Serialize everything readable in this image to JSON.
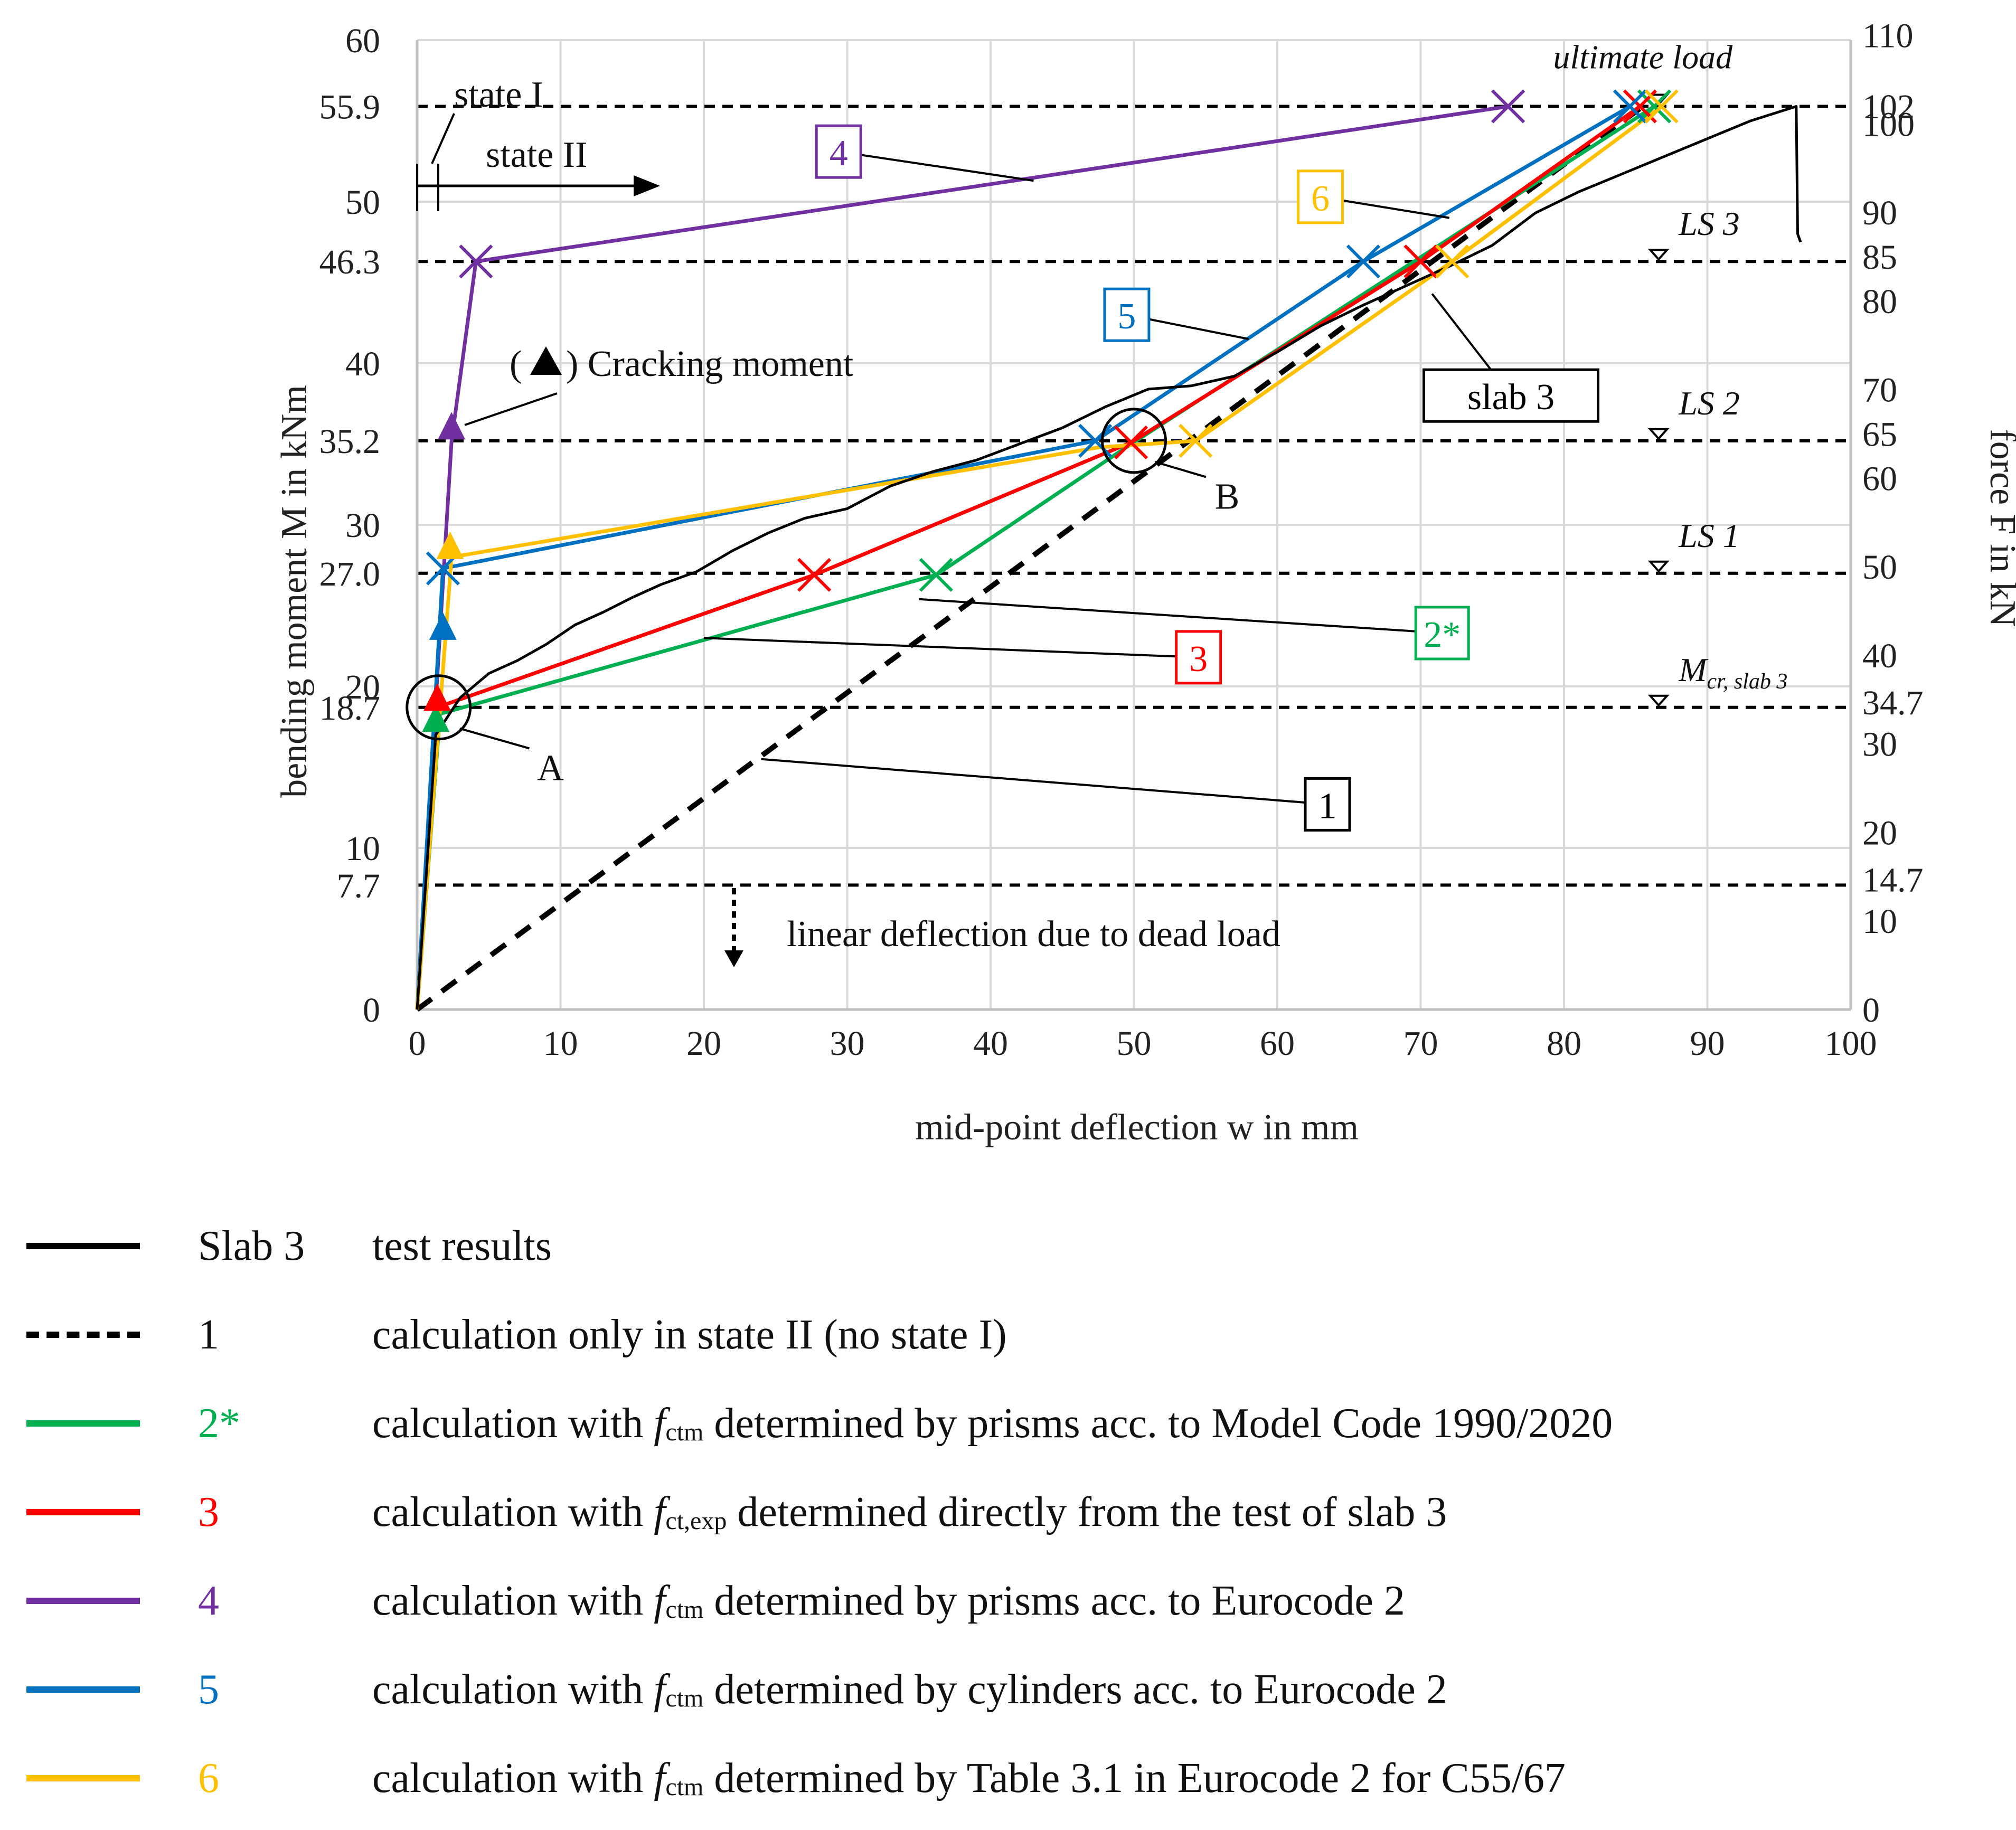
{
  "chart_data": {
    "type": "line",
    "xlabel": "mid-point deflection w in mm",
    "ylabel": "bending moment M in kNm",
    "y2label": "force F in kN",
    "xlim": [
      0,
      100
    ],
    "ylim": [
      0,
      60
    ],
    "x_ticks": [
      "0",
      "10",
      "20",
      "30",
      "40",
      "50",
      "60",
      "70",
      "80",
      "90",
      "100"
    ],
    "y_ticks": [
      {
        "value": 0,
        "label": "0"
      },
      {
        "value": 7.7,
        "label": "7.7"
      },
      {
        "value": 10,
        "label": "10"
      },
      {
        "value": 18.7,
        "label": "18.7"
      },
      {
        "value": 20,
        "label": "20"
      },
      {
        "value": 27.0,
        "label": "27.0"
      },
      {
        "value": 30,
        "label": "30"
      },
      {
        "value": 35.2,
        "label": "35.2"
      },
      {
        "value": 40,
        "label": "40"
      },
      {
        "value": 46.3,
        "label": "46.3"
      },
      {
        "value": 50,
        "label": "50"
      },
      {
        "value": 55.9,
        "label": "55.9"
      },
      {
        "value": 60,
        "label": "60"
      }
    ],
    "y2_ticks": [
      {
        "value": 0,
        "label": "0"
      },
      {
        "value": 10,
        "label": "10"
      },
      {
        "value": 14.7,
        "label": "14.7"
      },
      {
        "value": 20,
        "label": "20"
      },
      {
        "value": 30,
        "label": "30"
      },
      {
        "value": 34.7,
        "label": "34.7"
      },
      {
        "value": 40,
        "label": "40"
      },
      {
        "value": 50,
        "label": "50"
      },
      {
        "value": 60,
        "label": "60"
      },
      {
        "value": 65,
        "label": "65"
      },
      {
        "value": 70,
        "label": "70"
      },
      {
        "value": 80,
        "label": "80"
      },
      {
        "value": 85,
        "label": "85"
      },
      {
        "value": 90,
        "label": "90"
      },
      {
        "value": 100,
        "label": "100"
      },
      {
        "value": 102,
        "label": "102"
      },
      {
        "value": 110,
        "label": "110"
      }
    ],
    "y2_per_y": 1.824,
    "ref_lines": [
      7.7,
      18.7,
      27.0,
      35.2,
      46.3,
      55.9
    ],
    "load_steps": [
      {
        "y": 18.7,
        "label": "M",
        "sub": "cr, slab 3"
      },
      {
        "y": 27.0,
        "label": "LS 1",
        "sub": ""
      },
      {
        "y": 35.2,
        "label": "LS 2",
        "sub": ""
      },
      {
        "y": 46.3,
        "label": "LS 3",
        "sub": ""
      },
      {
        "y": 55.9,
        "label": "ultimate load",
        "sub": ""
      }
    ],
    "series": [
      {
        "id": "1",
        "name": "calculation only in state II (no state I)",
        "color": "#000000",
        "dash": true,
        "x": [
          0,
          85.5
        ],
        "y": [
          0,
          55.9
        ],
        "markers": [],
        "triangle": null
      },
      {
        "id": "2*",
        "name": "calculation with fctm determined by prisms acc. to Model Code 1990/2020",
        "color": "#00b050",
        "dash": false,
        "x": [
          0,
          1.6,
          36.2,
          49.8,
          86.3
        ],
        "y": [
          0,
          18.3,
          26.9,
          35.0,
          55.9
        ],
        "markers": [
          [
            36.2,
            26.9
          ],
          [
            86.3,
            55.9
          ]
        ],
        "triangle": [
          1.3,
          17.9
        ]
      },
      {
        "id": "3",
        "name": "calculation with fct,exp determined directly from the test of slab 3",
        "color": "#ff0000",
        "dash": false,
        "x": [
          0,
          1.4,
          27.7,
          49.8,
          70.0,
          85.3
        ],
        "y": [
          0,
          18.7,
          26.9,
          35.1,
          46.3,
          55.9
        ],
        "markers": [
          [
            27.7,
            26.9
          ],
          [
            49.8,
            35.1
          ],
          [
            70.0,
            46.3
          ],
          [
            85.3,
            55.9
          ]
        ],
        "triangle": [
          1.4,
          19.2
        ]
      },
      {
        "id": "4",
        "name": "calculation with fctm determined by prisms acc. to Eurocode 2",
        "color": "#7030a0",
        "dash": false,
        "x": [
          0,
          2.4,
          4.1,
          76.1
        ],
        "y": [
          0,
          35.2,
          46.3,
          55.9
        ],
        "markers": [
          [
            4.1,
            46.3
          ],
          [
            76.1,
            55.9
          ]
        ],
        "triangle": [
          2.4,
          36.0
        ]
      },
      {
        "id": "5",
        "name": "calculation with fctm determined by cylinders acc. to Eurocode 2",
        "color": "#0070c0",
        "dash": false,
        "x": [
          0,
          1.8,
          47.3,
          66.0,
          84.6
        ],
        "y": [
          0,
          27.3,
          35.2,
          46.3,
          55.9
        ],
        "markers": [
          [
            1.8,
            27.3
          ],
          [
            47.3,
            35.2
          ],
          [
            66.0,
            46.3
          ],
          [
            84.6,
            55.9
          ]
        ],
        "triangle": [
          1.8,
          23.6
        ]
      },
      {
        "id": "6",
        "name": "calculation with fctm determined by Table 3.1 in Eurocode 2 for C55/67",
        "color": "#ffc000",
        "dash": false,
        "x": [
          0,
          2.4,
          47.6,
          54.3,
          72.2,
          86.8
        ],
        "y": [
          0,
          28.0,
          34.8,
          35.2,
          46.3,
          55.9
        ],
        "markers": [
          [
            54.3,
            35.2
          ],
          [
            72.2,
            46.3
          ],
          [
            86.8,
            55.9
          ]
        ],
        "triangle": [
          2.3,
          28.6
        ]
      },
      {
        "id": "slab3",
        "name": "Slab 3 test results",
        "color": "#000000",
        "dash": false,
        "x": [
          0,
          1.3,
          3.0,
          5.0,
          7.0,
          9.0,
          11.0,
          13.0,
          15.0,
          17.0,
          19.5,
          22.0,
          24.5,
          27.0,
          30.0,
          33.0,
          36.0,
          39.0,
          42.0,
          45.0,
          48.0,
          51.0,
          54.0,
          57.0,
          60.0,
          63.0,
          66.0,
          69.0,
          72.0,
          75.0,
          78.0,
          81.0,
          84.0,
          87.0,
          90.0,
          93.0,
          96.2,
          96.3,
          96.5
        ],
        "y": [
          0,
          17.0,
          19.3,
          20.8,
          21.6,
          22.6,
          23.8,
          24.6,
          25.5,
          26.3,
          27.1,
          28.4,
          29.5,
          30.4,
          31.0,
          32.4,
          33.3,
          34.0,
          35.0,
          36.0,
          37.3,
          38.4,
          38.6,
          39.2,
          40.7,
          42.3,
          43.6,
          44.8,
          46.0,
          47.3,
          49.3,
          50.6,
          51.7,
          52.8,
          53.9,
          55.0,
          55.9,
          48.0,
          47.5
        ],
        "markers": [],
        "triangle": null
      }
    ],
    "labels": [
      {
        "id": "1",
        "text": "1",
        "x": 63.5,
        "y": 12.7,
        "color": "#000000",
        "to": [
          24.0,
          15.5
        ]
      },
      {
        "id": "2*",
        "text": "2*",
        "x": 71.5,
        "y": 23.3,
        "color": "#00b050",
        "to": [
          35.0,
          25.4
        ]
      },
      {
        "id": "3",
        "text": "3",
        "x": 54.5,
        "y": 21.8,
        "color": "#ff0000",
        "to": [
          20.0,
          23.0
        ]
      },
      {
        "id": "4",
        "text": "4",
        "x": 29.4,
        "y": 53.1,
        "color": "#7030a0",
        "to": [
          43.0,
          51.3
        ]
      },
      {
        "id": "5",
        "text": "5",
        "x": 49.5,
        "y": 43.0,
        "color": "#0070c0",
        "to": [
          58.0,
          41.5
        ]
      },
      {
        "id": "6",
        "text": "6",
        "x": 63.0,
        "y": 50.3,
        "color": "#ffc000",
        "to": [
          72.0,
          49.0
        ]
      },
      {
        "id": "slab3",
        "text": "slab 3",
        "x": 76.3,
        "y": 38.0,
        "color": "#000000",
        "to": [
          70.8,
          44.3
        ]
      }
    ],
    "circles": [
      {
        "label": "A",
        "x": 1.5,
        "y": 18.7,
        "label_x": 9.3,
        "label_y": 14.2
      },
      {
        "label": "B",
        "x": 50.0,
        "y": 35.2,
        "label_x": 56.5,
        "label_y": 31.0
      }
    ],
    "annotations": {
      "state_1": "state I",
      "state_2": "state II",
      "cracking_open": "(",
      "cracking_text": ") Cracking moment",
      "dead_load": "linear deflection due to dead load"
    }
  },
  "legend": [
    {
      "label": "Slab 3",
      "desc_pre": "test results",
      "f": "",
      "sub": "",
      "desc_post": "",
      "color": "#000000",
      "dashed": false
    },
    {
      "label": "1",
      "desc_pre": "calculation only in state II (no state I)",
      "f": "",
      "sub": "",
      "desc_post": "",
      "color": "#000000",
      "dashed": true
    },
    {
      "label": "2*",
      "desc_pre": "calculation with ",
      "f": "f",
      "sub": "ctm",
      "desc_post": " determined by prisms acc. to Model Code 1990/2020",
      "color": "#00b050",
      "dashed": false
    },
    {
      "label": "3",
      "desc_pre": "calculation with ",
      "f": "f",
      "sub": "ct,exp",
      "desc_post": " determined directly from the test of slab 3",
      "color": "#ff0000",
      "dashed": false
    },
    {
      "label": "4",
      "desc_pre": "calculation with ",
      "f": "f",
      "sub": "ctm",
      "desc_post": " determined by prisms acc. to Eurocode 2",
      "color": "#7030a0",
      "dashed": false
    },
    {
      "label": "5",
      "desc_pre": "calculation with ",
      "f": "f",
      "sub": "ctm",
      "desc_post": " determined by cylinders acc. to Eurocode 2",
      "color": "#0070c0",
      "dashed": false
    },
    {
      "label": "6",
      "desc_pre": "calculation with ",
      "f": "f",
      "sub": "ctm",
      "desc_post": " determined by Table 3.1 in Eurocode 2 for C55/67",
      "color": "#ffc000",
      "dashed": false
    }
  ]
}
